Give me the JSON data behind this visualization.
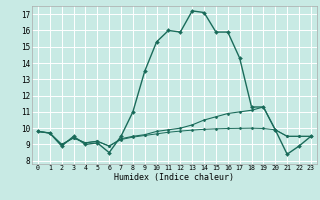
{
  "xlabel": "Humidex (Indice chaleur)",
  "xlim": [
    -0.5,
    23.5
  ],
  "ylim": [
    7.8,
    17.5
  ],
  "yticks": [
    8,
    9,
    10,
    11,
    12,
    13,
    14,
    15,
    16,
    17
  ],
  "xticks": [
    0,
    1,
    2,
    3,
    4,
    5,
    6,
    7,
    8,
    9,
    10,
    11,
    12,
    13,
    14,
    15,
    16,
    17,
    18,
    19,
    20,
    21,
    22,
    23
  ],
  "bg_color": "#c8eae4",
  "grid_color": "#ffffff",
  "line_color": "#1a6b5a",
  "lines": [
    {
      "x": [
        0,
        1,
        2,
        3,
        4,
        5,
        6,
        7,
        8,
        9,
        10,
        11,
        12,
        13,
        14,
        15,
        16,
        17,
        18,
        19,
        20,
        21,
        22,
        23
      ],
      "y": [
        9.8,
        9.7,
        8.9,
        9.5,
        9.0,
        9.1,
        8.5,
        9.5,
        11.0,
        13.5,
        15.3,
        16.0,
        15.9,
        17.2,
        17.1,
        15.9,
        15.9,
        14.3,
        11.3,
        11.3,
        9.9,
        8.4,
        8.9,
        9.5
      ],
      "style": "-",
      "marker": "D",
      "markersize": 2.0,
      "linewidth": 1.0
    },
    {
      "x": [
        0,
        1,
        2,
        3,
        4,
        5,
        6,
        7,
        8,
        9,
        10,
        11,
        12,
        13,
        14,
        15,
        16,
        17,
        18,
        19,
        20,
        21,
        22,
        23
      ],
      "y": [
        9.8,
        9.7,
        9.0,
        9.4,
        9.1,
        9.2,
        8.9,
        9.35,
        9.5,
        9.6,
        9.8,
        9.9,
        10.0,
        10.2,
        10.5,
        10.7,
        10.9,
        11.0,
        11.1,
        11.3,
        9.9,
        9.5,
        9.5,
        9.5
      ],
      "style": "-",
      "marker": "D",
      "markersize": 1.5,
      "linewidth": 0.8
    },
    {
      "x": [
        0,
        1,
        2,
        3,
        4,
        5,
        6,
        7,
        8,
        9,
        10,
        11,
        12,
        13,
        14,
        15,
        16,
        17,
        18,
        19,
        20,
        21,
        22,
        23
      ],
      "y": [
        9.8,
        9.7,
        9.0,
        9.4,
        9.1,
        9.2,
        8.9,
        9.3,
        9.45,
        9.55,
        9.65,
        9.75,
        9.82,
        9.88,
        9.93,
        9.96,
        9.98,
        9.99,
        10.0,
        9.98,
        9.9,
        9.5,
        9.5,
        9.5
      ],
      "style": "-",
      "marker": "D",
      "markersize": 1.5,
      "linewidth": 0.7
    }
  ]
}
